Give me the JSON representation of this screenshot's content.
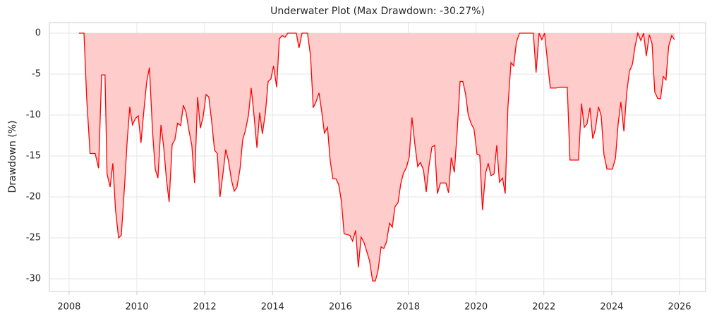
{
  "chart_data": {
    "type": "area",
    "title": "Underwater Plot (Max Drawdown: -30.27%)",
    "y_label": "Drawdown (%)",
    "x": [
      2008.29,
      2008.44,
      2008.52,
      2008.62,
      2008.77,
      2008.87,
      2008.96,
      2009.06,
      2009.12,
      2009.21,
      2009.29,
      2009.37,
      2009.46,
      2009.54,
      2009.64,
      2009.71,
      2009.79,
      2009.87,
      2009.96,
      2010.04,
      2010.12,
      2010.21,
      2010.29,
      2010.37,
      2010.46,
      2010.54,
      2010.62,
      2010.71,
      2010.79,
      2010.87,
      2010.95,
      2011.04,
      2011.12,
      2011.2,
      2011.29,
      2011.37,
      2011.45,
      2011.54,
      2011.62,
      2011.7,
      2011.79,
      2011.87,
      2011.95,
      2012.04,
      2012.12,
      2012.2,
      2012.29,
      2012.37,
      2012.45,
      2012.54,
      2012.62,
      2012.7,
      2012.79,
      2012.87,
      2012.95,
      2013.04,
      2013.12,
      2013.2,
      2013.29,
      2013.37,
      2013.45,
      2013.54,
      2013.62,
      2013.7,
      2013.79,
      2013.87,
      2013.95,
      2014.03,
      2014.12,
      2014.2,
      2014.28,
      2014.37,
      2014.45,
      2014.62,
      2014.7,
      2014.78,
      2014.87,
      2015.03,
      2015.12,
      2015.2,
      2015.28,
      2015.37,
      2015.45,
      2015.53,
      2015.62,
      2015.7,
      2015.78,
      2015.87,
      2015.95,
      2016.03,
      2016.11,
      2016.2,
      2016.28,
      2016.36,
      2016.45,
      2016.53,
      2016.61,
      2016.7,
      2016.78,
      2016.86,
      2016.95,
      2017.03,
      2017.11,
      2017.2,
      2017.28,
      2017.36,
      2017.45,
      2017.53,
      2017.61,
      2017.7,
      2017.78,
      2017.86,
      2017.95,
      2018.03,
      2018.11,
      2018.2,
      2018.28,
      2018.36,
      2018.45,
      2018.53,
      2018.61,
      2018.7,
      2018.78,
      2018.86,
      2018.95,
      2019.03,
      2019.11,
      2019.19,
      2019.27,
      2019.36,
      2019.44,
      2019.53,
      2019.61,
      2019.69,
      2019.77,
      2019.86,
      2019.94,
      2020.03,
      2020.11,
      2020.19,
      2020.28,
      2020.36,
      2020.44,
      2020.53,
      2020.61,
      2020.69,
      2020.78,
      2020.86,
      2020.94,
      2021.03,
      2021.11,
      2021.19,
      2021.28,
      2021.69,
      2021.77,
      2021.86,
      2021.94,
      2022.02,
      2022.11,
      2022.19,
      2022.36,
      2022.44,
      2022.69,
      2022.77,
      2023.02,
      2023.11,
      2023.19,
      2023.27,
      2023.36,
      2023.44,
      2023.52,
      2023.61,
      2023.69,
      2023.77,
      2023.86,
      2024.02,
      2024.11,
      2024.19,
      2024.27,
      2024.36,
      2024.44,
      2024.52,
      2024.61,
      2024.69,
      2024.77,
      2024.86,
      2024.94,
      2025.02,
      2025.11,
      2025.19,
      2025.27,
      2025.36,
      2025.44,
      2025.52,
      2025.6,
      2025.68,
      2025.77,
      2025.85
    ],
    "series": [
      {
        "name": "Drawdown",
        "color": "#ff0000",
        "fill_color": "#ffcccc",
        "values": [
          0,
          0,
          -8.0,
          -14.7,
          -14.7,
          -16.5,
          -5.1,
          -5.1,
          -17.2,
          -18.8,
          -15.9,
          -21.6,
          -25.0,
          -24.7,
          -18.4,
          -13.4,
          -9.0,
          -11.2,
          -10.4,
          -10.1,
          -13.4,
          -9.3,
          -5.9,
          -4.2,
          -11.9,
          -16.6,
          -17.7,
          -11.2,
          -13.9,
          -17.8,
          -20.6,
          -13.6,
          -13.0,
          -11.0,
          -11.3,
          -8.8,
          -9.7,
          -12.0,
          -13.7,
          -18.3,
          -7.8,
          -11.6,
          -10.3,
          -7.5,
          -7.8,
          -10.6,
          -14.3,
          -14.7,
          -20.0,
          -17.1,
          -14.2,
          -15.6,
          -18.0,
          -19.3,
          -18.8,
          -16.6,
          -13.0,
          -11.9,
          -10.0,
          -6.7,
          -9.9,
          -14.0,
          -9.7,
          -12.3,
          -9.7,
          -5.9,
          -5.6,
          -4.0,
          -6.6,
          -0.7,
          -0.3,
          -0.5,
          0,
          0,
          0,
          -1.8,
          0,
          0,
          -2.8,
          -9.1,
          -8.4,
          -7.3,
          -9.6,
          -12.2,
          -11.5,
          -15.6,
          -17.8,
          -17.8,
          -18.5,
          -20.5,
          -24.5,
          -24.6,
          -24.7,
          -25.4,
          -24.1,
          -28.6,
          -24.9,
          -25.6,
          -26.7,
          -27.8,
          -30.27,
          -30.27,
          -29.0,
          -26.1,
          -26.3,
          -25.5,
          -23.2,
          -23.7,
          -21.2,
          -20.7,
          -18.4,
          -17.1,
          -16.4,
          -15.1,
          -10.3,
          -13.7,
          -16.3,
          -15.8,
          -16.7,
          -19.4,
          -16.3,
          -13.9,
          -13.7,
          -19.6,
          -18.3,
          -18.3,
          -18.3,
          -19.5,
          -15.2,
          -17.0,
          -12.2,
          -5.9,
          -5.9,
          -7.4,
          -10.0,
          -11.1,
          -11.7,
          -14.8,
          -14.9,
          -21.6,
          -17.1,
          -15.9,
          -17.4,
          -17.2,
          -13.7,
          -18.2,
          -17.7,
          -19.6,
          -9.0,
          -3.6,
          -4.0,
          -1.1,
          0,
          0,
          -4.8,
          0,
          -0.8,
          0,
          -3.6,
          -6.7,
          -6.7,
          -6.6,
          -6.6,
          -15.5,
          -15.5,
          -8.6,
          -11.5,
          -11.1,
          -9.1,
          -12.9,
          -11.7,
          -9.0,
          -10.1,
          -14.8,
          -16.6,
          -16.6,
          -15.3,
          -11.1,
          -8.4,
          -12.0,
          -7.4,
          -4.7,
          -3.8,
          -1.6,
          0,
          -0.9,
          0,
          -2.8,
          -0.2,
          -1.3,
          -7.2,
          -8.0,
          -8.0,
          -5.3,
          -5.7,
          -1.6,
          -0.3,
          -0.8
        ]
      }
    ],
    "xlim": [
      2007.42,
      2026.77
    ],
    "xticks": [
      2008,
      2010,
      2012,
      2014,
      2016,
      2018,
      2020,
      2022,
      2024,
      2026
    ],
    "ylim": [
      -31.55,
      1.29
    ],
    "yticks": [
      0,
      -5,
      -10,
      -15,
      -20,
      -25,
      -30
    ],
    "grid": true
  }
}
